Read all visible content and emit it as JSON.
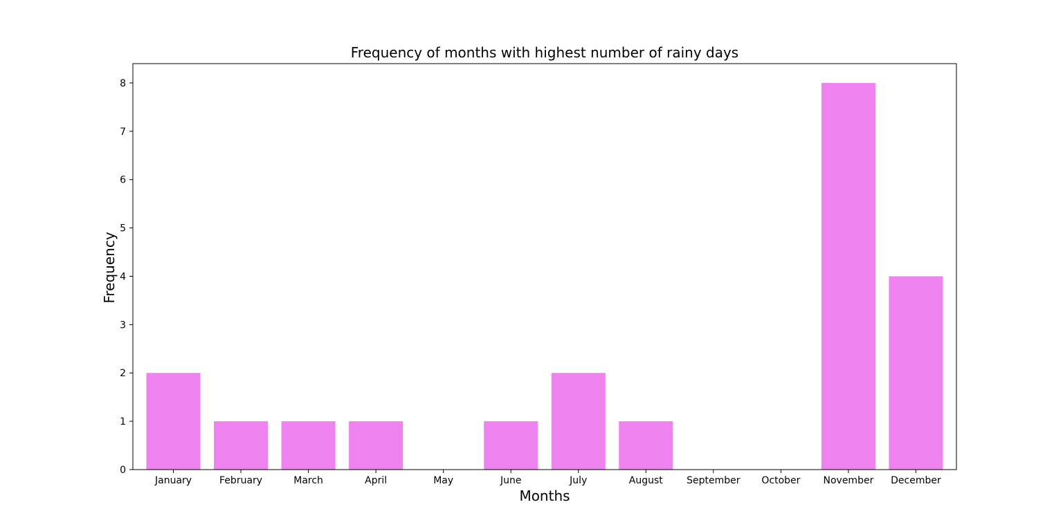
{
  "chart_data": {
    "type": "bar",
    "title": "Frequency of months with highest number of rainy days",
    "xlabel": "Months",
    "ylabel": "Frequency",
    "categories": [
      "January",
      "February",
      "March",
      "April",
      "May",
      "June",
      "July",
      "August",
      "September",
      "October",
      "November",
      "December"
    ],
    "values": [
      2,
      1,
      1,
      1,
      0,
      1,
      2,
      1,
      0,
      0,
      8,
      4
    ],
    "ylim": [
      0,
      8.4
    ],
    "yticks": [
      0,
      1,
      2,
      3,
      4,
      5,
      6,
      7,
      8
    ],
    "bar_color": "#ee82ee",
    "grid": false,
    "legend": "none"
  }
}
